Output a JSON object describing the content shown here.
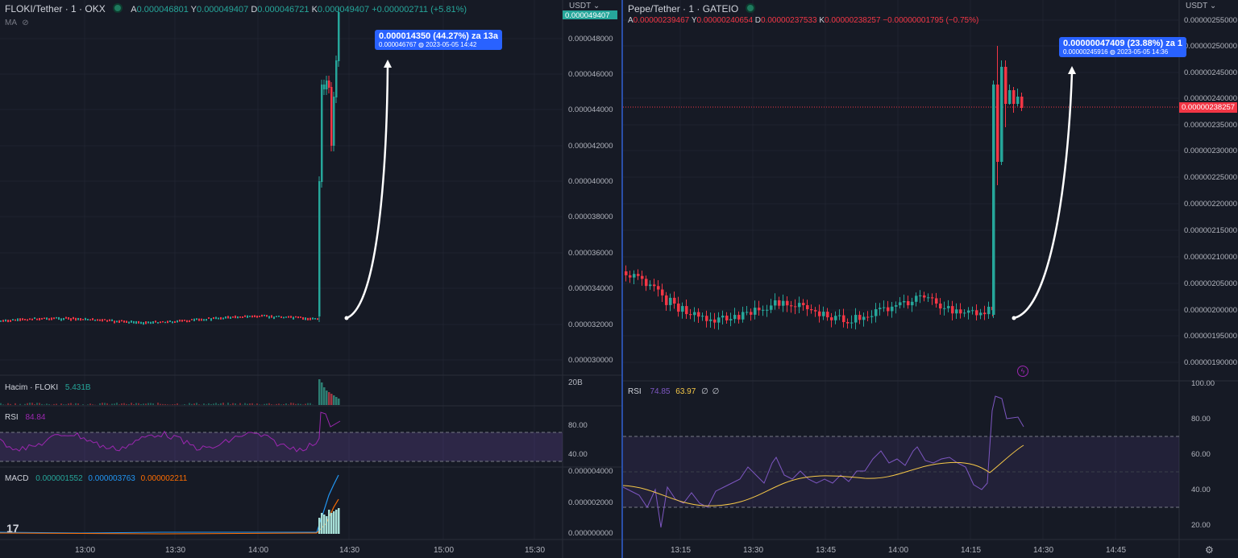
{
  "left": {
    "symbol": "FLOKI/Tether · 1 · OKX",
    "ohlc": {
      "a_label": "A",
      "a": "0.000046801",
      "y_label": "Y",
      "y": "0.000049407",
      "d_label": "D",
      "d": "0.000046721",
      "k_label": "K",
      "k": "0.000049407",
      "change": "+0.000002711 (+5.81%)"
    },
    "ma_label": "MA",
    "currency": "USDT",
    "current_price_tag": "0.000049407",
    "price_ticks": [
      "0.000048000",
      "0.000046000",
      "0.000044000",
      "0.000042000",
      "0.000040000",
      "0.000038000",
      "0.000036000",
      "0.000034000",
      "0.000032000",
      "0.000030000"
    ],
    "tooltip": {
      "main": "0.000014350 (44.27%) za 13a",
      "sub": "0.000046767 ◍ 2023-05-05  14:42"
    },
    "volume": {
      "label": "Hacim · FLOKI",
      "value": "5.431B",
      "axis": "20B"
    },
    "rsi": {
      "label": "RSI",
      "value": "84.84",
      "ticks": [
        "80.00",
        "40.00"
      ]
    },
    "macd": {
      "label": "MACD",
      "v1": "0.000001552",
      "v2": "0.000003763",
      "v3": "0.000002211",
      "ticks": [
        "0.000004000",
        "0.000002000",
        "0.000000000"
      ]
    },
    "time_ticks": [
      "13:00",
      "13:30",
      "14:00",
      "14:30",
      "15:00",
      "15:30"
    ],
    "logo_text": "17"
  },
  "right": {
    "symbol": "Pepe/Tether · 1 · GATEIO",
    "ohlc": {
      "a_label": "A",
      "a": "0.00000239467",
      "y_label": "Y",
      "y": "0.00000240654",
      "d_label": "D",
      "d": "0.00000237533",
      "k_label": "K",
      "k": "0.00000238257",
      "change": "−0.00000001795 (−0.75%)"
    },
    "currency": "USDT",
    "current_price_tag": "0.00000238257",
    "price_ticks": [
      "0.00000255000",
      "0.00000250000",
      "0.00000245000",
      "0.00000240000",
      "0.00000235000",
      "0.00000230000",
      "0.00000225000",
      "0.00000220000",
      "0.00000215000",
      "0.00000210000",
      "0.00000205000",
      "0.00000200000",
      "0.00000195000",
      "0.00000190000"
    ],
    "tooltip": {
      "main": "0.00000047409 (23.88%) za 1",
      "sub": "0.00000245916 ◍ 2023-05-05  14:36"
    },
    "rsi": {
      "label": "RSI",
      "v1": "74.85",
      "v2": "63.97",
      "v3": "∅",
      "v4": "∅",
      "ticks": [
        "100.00",
        "80.00",
        "60.00",
        "40.00",
        "20.00"
      ]
    },
    "time_ticks": [
      "13:15",
      "13:30",
      "13:45",
      "14:00",
      "14:15",
      "14:30",
      "14:45"
    ]
  },
  "colors": {
    "up": "#26a69a",
    "down": "#f23645",
    "accent": "#2962ff",
    "rsi_left": "#9c27b0",
    "rsi_right": "#7e57c2",
    "rsi_ma": "#f7c948"
  }
}
